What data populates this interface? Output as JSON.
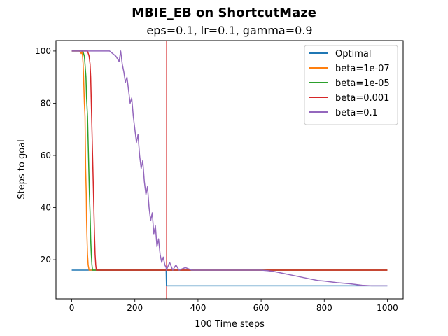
{
  "chart_data": {
    "type": "line",
    "title": "MBIE_EB on ShortcutMaze",
    "subtitle": "eps=0.1, lr=0.1, gamma=0.9",
    "xlabel": "100 Time steps",
    "ylabel": "Steps to goal",
    "xlim": [
      -50,
      1050
    ],
    "ylim": [
      5,
      104
    ],
    "xticks": [
      0,
      200,
      400,
      600,
      800,
      1000
    ],
    "yticks": [
      20,
      40,
      60,
      80,
      100
    ],
    "grid": false,
    "legend_position": "top-right",
    "annotations": [
      {
        "type": "vline",
        "x": 300,
        "color": "#d62728"
      }
    ],
    "series": [
      {
        "name": "Optimal",
        "color": "#1f77b4",
        "x": [
          0,
          299,
          300,
          1000
        ],
        "y": [
          16,
          16,
          10,
          10
        ]
      },
      {
        "name": "beta=1e-07",
        "color": "#ff7f0e",
        "x": [
          0,
          10,
          25,
          30,
          33,
          36,
          38,
          40,
          42,
          43,
          44,
          46,
          47,
          48,
          50,
          52,
          55,
          299,
          300,
          1000
        ],
        "y": [
          100,
          100,
          100,
          99,
          100,
          95,
          88,
          80,
          75,
          65,
          55,
          45,
          35,
          30,
          22,
          18,
          16,
          16,
          16,
          16
        ]
      },
      {
        "name": "beta=1e-05",
        "color": "#2ca02c",
        "x": [
          0,
          20,
          35,
          40,
          42,
          45,
          47,
          50,
          52,
          54,
          56,
          58,
          60,
          62,
          64,
          66,
          300,
          1000
        ],
        "y": [
          100,
          100,
          100,
          98,
          95,
          90,
          82,
          75,
          65,
          55,
          45,
          38,
          28,
          22,
          18,
          16,
          16,
          16
        ]
      },
      {
        "name": "beta=0.001",
        "color": "#d62728",
        "x": [
          0,
          30,
          50,
          55,
          58,
          60,
          62,
          64,
          66,
          68,
          70,
          72,
          74,
          76,
          78,
          300,
          1000
        ],
        "y": [
          100,
          100,
          100,
          98,
          95,
          90,
          80,
          70,
          60,
          50,
          40,
          30,
          22,
          18,
          16,
          16,
          16
        ]
      },
      {
        "name": "beta=0.1",
        "color": "#9467bd",
        "x": [
          0,
          60,
          100,
          120,
          140,
          150,
          155,
          160,
          165,
          170,
          175,
          180,
          185,
          190,
          195,
          200,
          205,
          210,
          215,
          220,
          225,
          230,
          235,
          240,
          245,
          250,
          255,
          260,
          265,
          270,
          275,
          280,
          285,
          290,
          295,
          299,
          300,
          310,
          320,
          330,
          340,
          360,
          380,
          400,
          450,
          500,
          550,
          600,
          620,
          640,
          660,
          680,
          700,
          720,
          740,
          760,
          780,
          800,
          820,
          840,
          860,
          880,
          900,
          920,
          950,
          1000
        ],
        "y": [
          100,
          100,
          100,
          100,
          98,
          96,
          100,
          95,
          92,
          88,
          90,
          85,
          80,
          82,
          75,
          70,
          65,
          68,
          60,
          55,
          58,
          50,
          45,
          48,
          40,
          35,
          38,
          30,
          33,
          25,
          28,
          22,
          19,
          21,
          18,
          17,
          16,
          19,
          16,
          18,
          16,
          17,
          16,
          16,
          16,
          16,
          16,
          16,
          15.8,
          15.5,
          15.0,
          14.5,
          14.0,
          13.5,
          13.0,
          12.5,
          12.0,
          11.8,
          11.5,
          11.2,
          11.0,
          10.8,
          10.5,
          10.2,
          10.0,
          10.0
        ]
      }
    ]
  }
}
